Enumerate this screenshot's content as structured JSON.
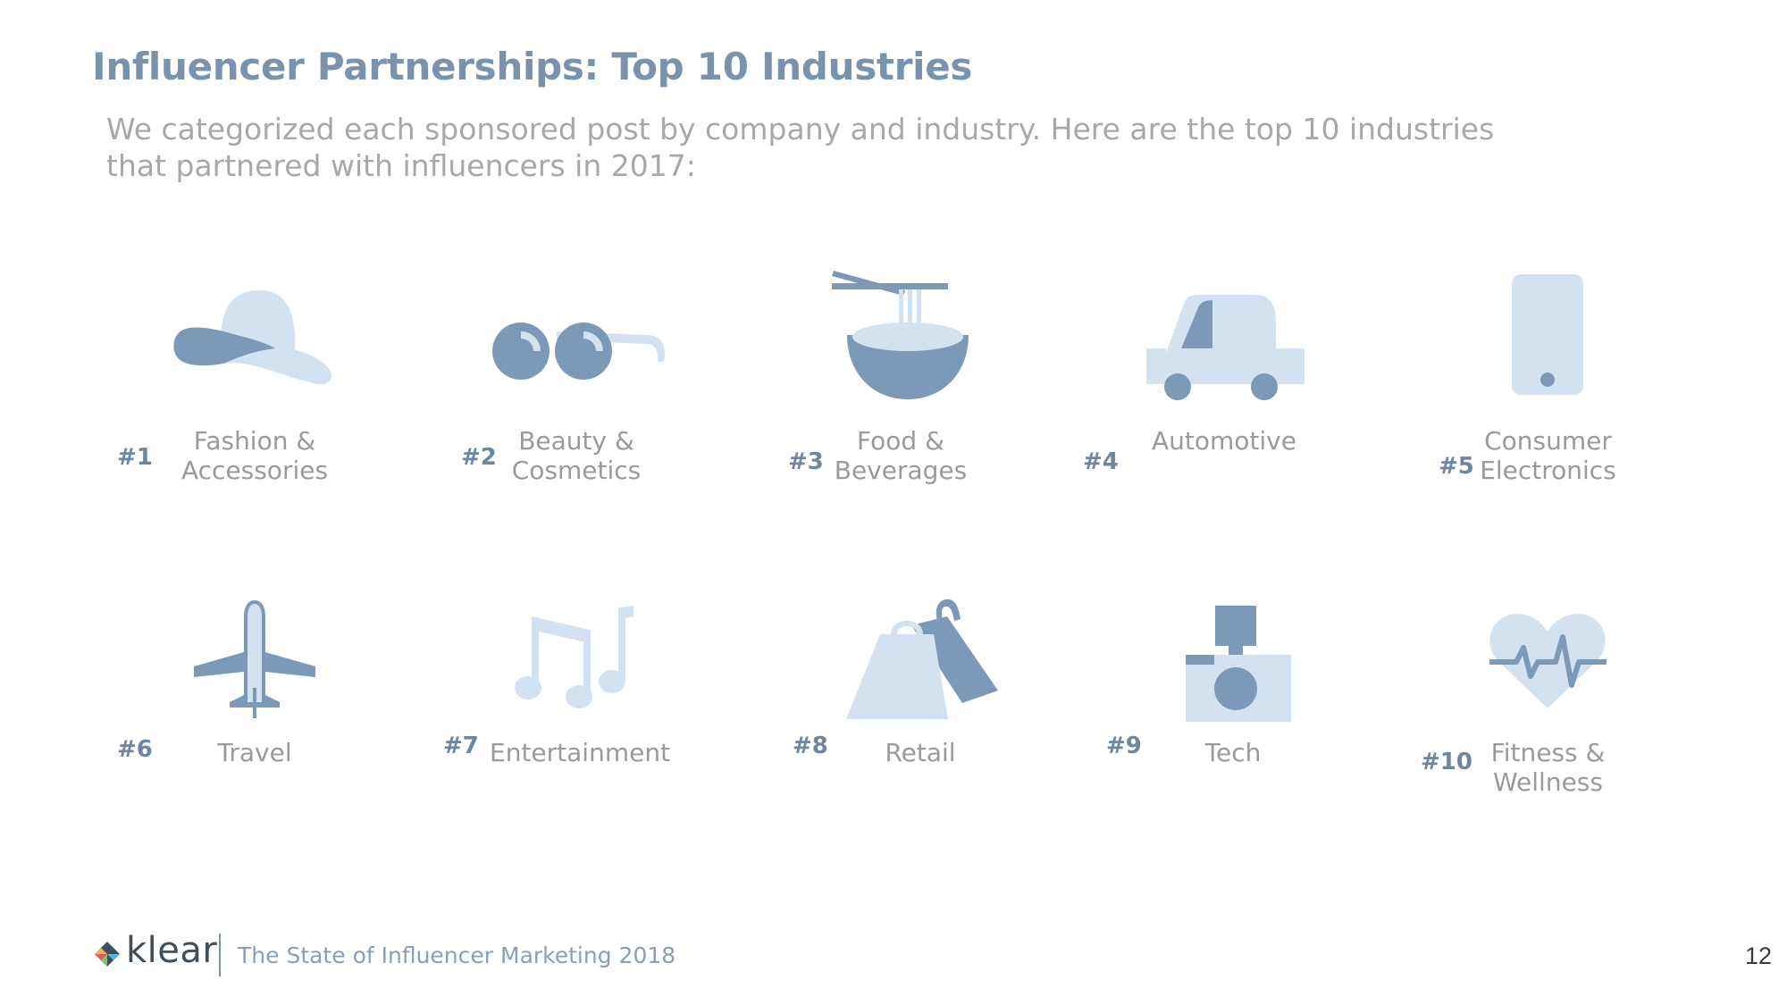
{
  "title": "Influencer Partnerships: Top 10 Industries",
  "subtitle": "We categorized each sponsored post by company and industry. Here are the top 10 industries that partnered with influencers in 2017:",
  "colors": {
    "dark_blue": "#7c9ab8",
    "light_blue": "#d3e2f1",
    "title": "#7a93ad",
    "text_gray": "#9a9a9a"
  },
  "industries": [
    {
      "rank": "#1",
      "line1": "Fashion &",
      "line2": "Accessories",
      "icon": "hat-icon"
    },
    {
      "rank": "#2",
      "line1": "Beauty &",
      "line2": "Cosmetics",
      "icon": "sunglasses-icon"
    },
    {
      "rank": "#3",
      "line1": "Food &",
      "line2": "Beverages",
      "icon": "noodle-bowl-icon"
    },
    {
      "rank": "#4",
      "line1": "",
      "line2": "Automotive",
      "icon": "car-icon"
    },
    {
      "rank": "#5",
      "line1": "Consumer",
      "line2": "Electronics",
      "icon": "smartphone-icon"
    },
    {
      "rank": "#6",
      "line1": "Travel",
      "line2": "",
      "icon": "airplane-icon"
    },
    {
      "rank": "#7",
      "line1": "Entertainment",
      "line2": "",
      "icon": "music-notes-icon"
    },
    {
      "rank": "#8",
      "line1": "Retail",
      "line2": "",
      "icon": "shopping-bags-icon"
    },
    {
      "rank": "#9",
      "line1": "Tech",
      "line2": "",
      "icon": "camera-icon"
    },
    {
      "rank": "#10",
      "line1": "Fitness &",
      "line2": "Wellness",
      "icon": "heartbeat-icon"
    }
  ],
  "footer": {
    "brand": "klear",
    "report": "The State of Influencer Marketing 2018",
    "page": "12"
  }
}
